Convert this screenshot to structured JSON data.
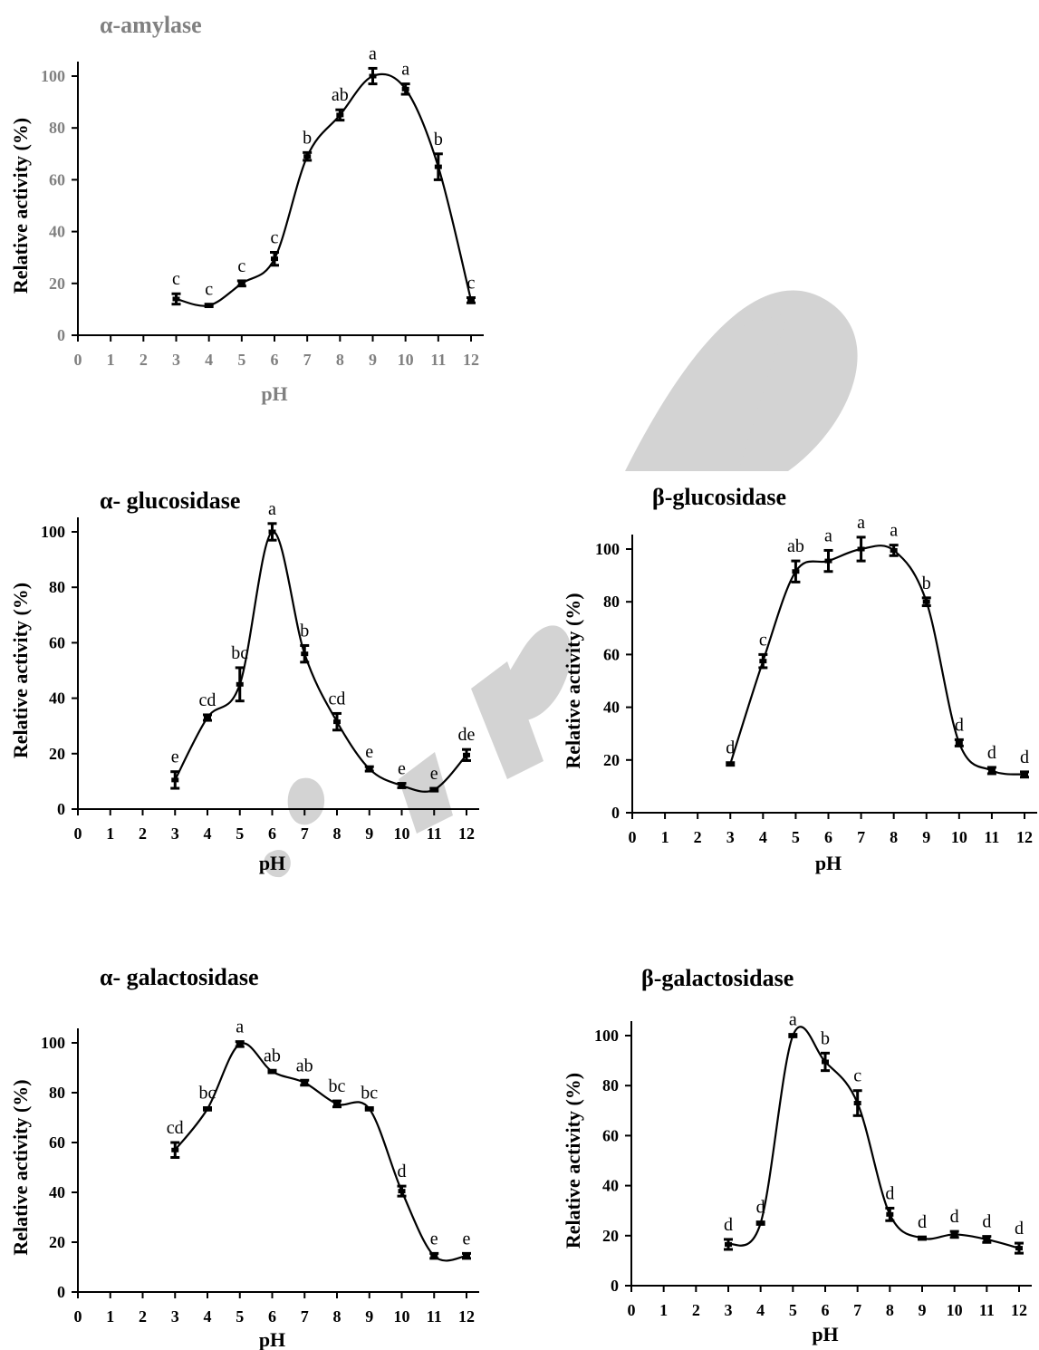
{
  "chart_data": [
    {
      "type": "line",
      "title": "α-amylase",
      "title_color": "#808080",
      "xlabel": "pH",
      "xlabel_color": "#808080",
      "ylabel": "Relative activity (%)",
      "xlim": [
        0,
        12
      ],
      "ylim": [
        0,
        100
      ],
      "x_ticks": [
        "0",
        "1",
        "2",
        "3",
        "4",
        "5",
        "6",
        "7",
        "8",
        "9",
        "10",
        "11",
        "12"
      ],
      "y_ticks": [
        "0",
        "20",
        "40",
        "60",
        "80",
        "100"
      ],
      "grid": false,
      "series": [
        {
          "x": [
            3,
            4,
            5,
            6,
            7,
            8,
            9,
            10,
            11,
            12
          ],
          "values": [
            14,
            11.5,
            20,
            29.5,
            69,
            85,
            100,
            95,
            65,
            13.5
          ],
          "errors": [
            2,
            0.5,
            1,
            2.5,
            1.5,
            2,
            3,
            2,
            5,
            1
          ],
          "labels": [
            "c",
            "c",
            "c",
            "c",
            "b",
            "ab",
            "a",
            "a",
            "b",
            "c"
          ]
        }
      ]
    },
    {
      "type": "line",
      "title": "α- glucosidase",
      "xlabel": "pH",
      "ylabel": "Relative activity (%)",
      "xlim": [
        0,
        12
      ],
      "ylim": [
        0,
        100
      ],
      "x_ticks": [
        "0",
        "1",
        "2",
        "3",
        "4",
        "5",
        "6",
        "7",
        "8",
        "9",
        "10",
        "11",
        "12"
      ],
      "y_ticks": [
        "0",
        "20",
        "40",
        "60",
        "80",
        "100"
      ],
      "grid": false,
      "series": [
        {
          "x": [
            3,
            4,
            5,
            6,
            7,
            8,
            9,
            10,
            11,
            12
          ],
          "values": [
            10.5,
            33,
            45,
            100,
            56,
            31.5,
            14.5,
            8.5,
            7,
            19.5
          ],
          "errors": [
            3,
            1,
            6,
            3,
            3,
            3,
            0.8,
            0.8,
            0.5,
            2
          ],
          "labels": [
            "e",
            "cd",
            "bc",
            "a",
            "b",
            "cd",
            "e",
            "e",
            "e",
            "de"
          ]
        }
      ]
    },
    {
      "type": "line",
      "title": "β-glucosidase",
      "xlabel": "pH",
      "ylabel": "Relative activity (%)",
      "xlim": [
        0,
        12
      ],
      "ylim": [
        0,
        100
      ],
      "x_ticks": [
        "0",
        "1",
        "2",
        "3",
        "4",
        "5",
        "6",
        "7",
        "8",
        "9",
        "10",
        "11",
        "12"
      ],
      "y_ticks": [
        "0",
        "20",
        "40",
        "60",
        "80",
        "100"
      ],
      "grid": false,
      "series": [
        {
          "x": [
            3,
            4,
            5,
            6,
            7,
            8,
            9,
            10,
            11,
            12
          ],
          "values": [
            18.5,
            57.5,
            91.5,
            95.5,
            100,
            99.5,
            80,
            26.5,
            16,
            14.5
          ],
          "errors": [
            0.5,
            2.5,
            4,
            4,
            4.5,
            2,
            1.5,
            1.2,
            1.2,
            1
          ],
          "labels": [
            "d",
            "c",
            "ab",
            "a",
            "a",
            "a",
            "b",
            "d",
            "d",
            "d"
          ]
        }
      ]
    },
    {
      "type": "line",
      "title": "α- galactosidase",
      "xlabel": "pH",
      "ylabel": "Relative activity (%)",
      "xlim": [
        0,
        12
      ],
      "ylim": [
        0,
        100
      ],
      "x_ticks": [
        "0",
        "1",
        "2",
        "3",
        "4",
        "5",
        "6",
        "7",
        "8",
        "9",
        "10",
        "11",
        "12"
      ],
      "y_ticks": [
        "0",
        "20",
        "40",
        "60",
        "80",
        "100"
      ],
      "grid": false,
      "series": [
        {
          "x": [
            3,
            4,
            5,
            6,
            7,
            8,
            9,
            10,
            11,
            12
          ],
          "values": [
            57,
            73.5,
            99.5,
            88.5,
            84,
            75.5,
            73.5,
            40.5,
            14.5,
            14.5
          ],
          "errors": [
            3,
            0.5,
            1,
            0.5,
            1,
            1.2,
            0.5,
            2,
            1,
            1
          ],
          "labels": [
            "cd",
            "bc",
            "a",
            "ab",
            "ab",
            "bc",
            "bc",
            "d",
            "e",
            "e"
          ]
        }
      ]
    },
    {
      "type": "line",
      "title": "β-galactosidase",
      "xlabel": "pH",
      "ylabel": "Relative activity (%)",
      "xlim": [
        0,
        12
      ],
      "ylim": [
        0,
        100
      ],
      "x_ticks": [
        "0",
        "1",
        "2",
        "3",
        "4",
        "5",
        "6",
        "7",
        "8",
        "9",
        "10",
        "11",
        "12"
      ],
      "y_ticks": [
        "0",
        "20",
        "40",
        "60",
        "80",
        "100"
      ],
      "grid": false,
      "series": [
        {
          "x": [
            3,
            4,
            5,
            6,
            7,
            8,
            9,
            10,
            11,
            12
          ],
          "values": [
            16.5,
            25,
            100,
            89.5,
            73,
            28.5,
            19,
            20.5,
            18.5,
            15
          ],
          "errors": [
            2,
            0.5,
            0.5,
            3.5,
            5,
            2.5,
            0.5,
            1.2,
            1.2,
            2
          ],
          "labels": [
            "d",
            "d",
            "a",
            "b",
            "c",
            "d",
            "d",
            "d",
            "d",
            "d"
          ]
        }
      ]
    }
  ]
}
